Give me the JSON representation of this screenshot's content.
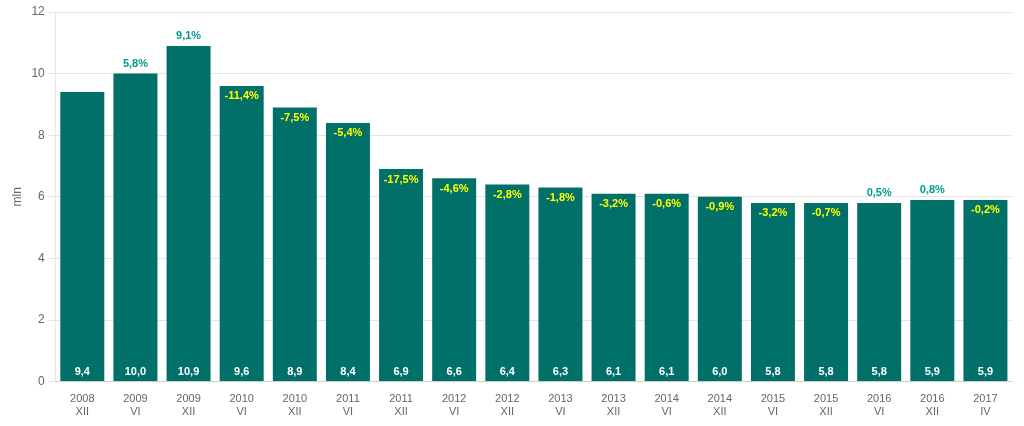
{
  "chart_data": {
    "type": "bar",
    "y_label": "mln",
    "categories": [
      "2008\nXII",
      "2009\nVI",
      "2009\nXII",
      "2010\nVI",
      "2010\nXII",
      "2011\nVI",
      "2011\nXII",
      "2012\nVI",
      "2012\nXII",
      "2013\nVI",
      "2013\nXII",
      "2014\nVI",
      "2014\nXII",
      "2015\nVI",
      "2015\nXII",
      "2016\nVI",
      "2016\nXII",
      "2017\nIV"
    ],
    "values": [
      9.4,
      10.0,
      10.9,
      9.6,
      8.9,
      8.4,
      6.9,
      6.6,
      6.4,
      6.3,
      6.1,
      6.1,
      6.0,
      5.8,
      5.8,
      5.8,
      5.9,
      5.9
    ],
    "value_labels": [
      "9,4",
      "10,0",
      "10,9",
      "9,6",
      "8,9",
      "8,4",
      "6,9",
      "6,6",
      "6,4",
      "6,3",
      "6,1",
      "6,1",
      "6,0",
      "5,8",
      "5,8",
      "5,8",
      "5,9",
      "5,9"
    ],
    "data_labels": true,
    "annotations": [
      null,
      {
        "text": "5,8%",
        "color": "#009b8d"
      },
      {
        "text": "9,1%",
        "color": "#009b8d"
      },
      {
        "text": "-11,4%",
        "color": "#ffff00"
      },
      {
        "text": "-7,5%",
        "color": "#ffff00"
      },
      {
        "text": "-5,4%",
        "color": "#ffff00"
      },
      {
        "text": "-17,5%",
        "color": "#ffff00"
      },
      {
        "text": "-4,6%",
        "color": "#ffff00"
      },
      {
        "text": "-2,8%",
        "color": "#ffff00"
      },
      {
        "text": "-1,8%",
        "color": "#ffff00"
      },
      {
        "text": "-3,2%",
        "color": "#ffff00"
      },
      {
        "text": "-0,6%",
        "color": "#ffff00"
      },
      {
        "text": "-0,9%",
        "color": "#ffff00"
      },
      {
        "text": "-3,2%",
        "color": "#ffff00"
      },
      {
        "text": "-0,7%",
        "color": "#ffff00"
      },
      {
        "text": "0,5%",
        "color": "#009b8d"
      },
      {
        "text": "0,8%",
        "color": "#009b8d"
      },
      {
        "text": "-0,2%",
        "color": "#ffff00"
      }
    ],
    "color": "#007068",
    "ylim": [
      0,
      12
    ],
    "yticks": [
      0,
      2,
      4,
      6,
      8,
      10,
      12
    ],
    "grid": true
  }
}
